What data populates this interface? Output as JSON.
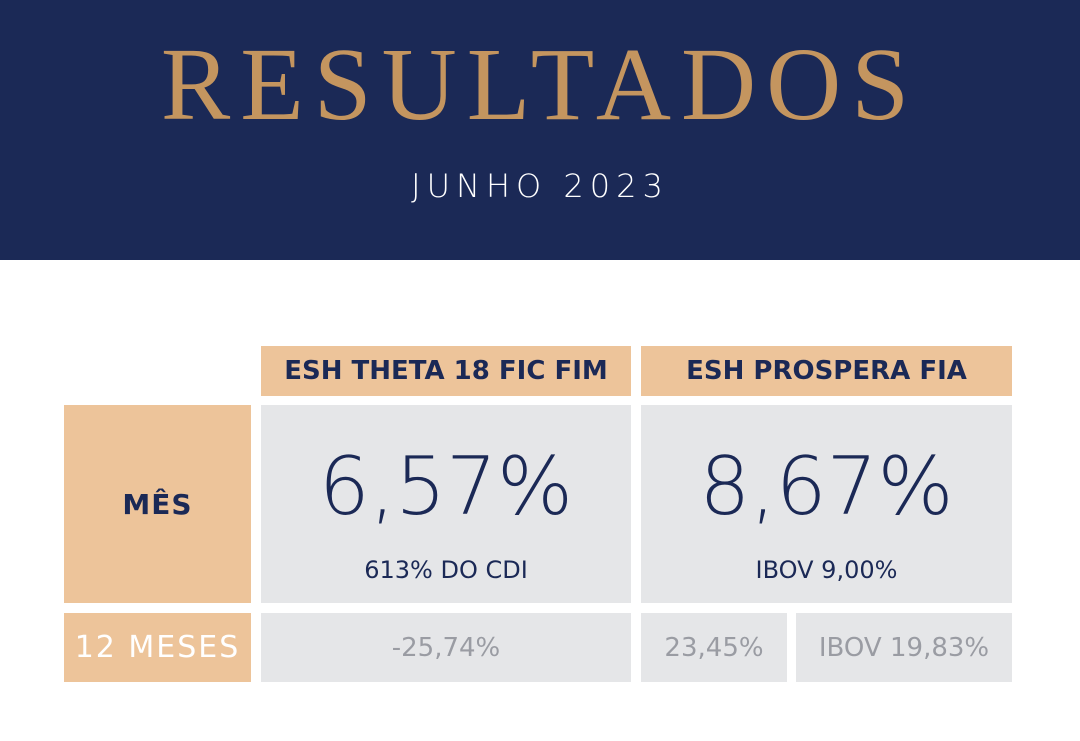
{
  "header": {
    "title": "RESULTADOS",
    "subtitle": "JUNHO 2023"
  },
  "table": {
    "columns": [
      "ESH THETA 18 FIC FIM",
      "ESH PROSPERA FIA"
    ],
    "rows": [
      {
        "label": "MÊS",
        "theta": {
          "value": "6,57%",
          "note": "613% DO CDI"
        },
        "prospera": {
          "value": "8,67%",
          "note": "IBOV 9,00%"
        }
      },
      {
        "label": "12 MESES",
        "theta": {
          "value": "-25,74%"
        },
        "prospera": {
          "value": "23,45%",
          "benchmark": "IBOV 19,83%"
        }
      }
    ]
  },
  "colors": {
    "navy": "#1b2956",
    "gold": "#c4955f",
    "tan": "#edc49a",
    "gray": "#e5e6e8"
  }
}
